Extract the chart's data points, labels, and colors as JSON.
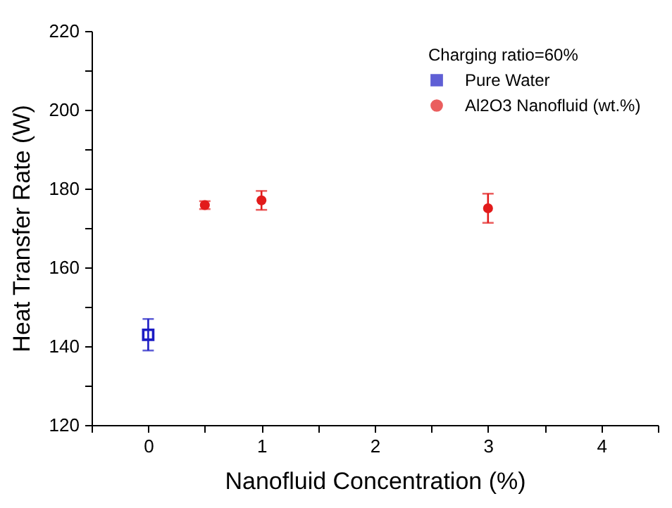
{
  "chart_data": {
    "type": "scatter",
    "xlabel": "Nanofluid Concentration (%)",
    "ylabel": "Heat Transfer Rate (W)",
    "legend_title": "Charging ratio=60%",
    "xlim": [
      -0.5,
      4.5
    ],
    "xticks": [
      {
        "value": -0.5,
        "label": null
      },
      0,
      {
        "value": 0.5,
        "label": null
      },
      1,
      {
        "value": 1.5,
        "label": null
      },
      2,
      {
        "value": 2.5,
        "label": null
      },
      3,
      {
        "value": 3.5,
        "label": null
      },
      4,
      {
        "value": 4.5,
        "label": null
      }
    ],
    "ylim": [
      120,
      220
    ],
    "yticks": [
      120,
      {
        "value": 130,
        "label": null
      },
      140,
      {
        "value": 150,
        "label": null
      },
      160,
      {
        "value": 170,
        "label": null
      },
      180,
      {
        "value": 190,
        "label": null
      },
      200,
      {
        "value": 210,
        "label": null
      },
      220
    ],
    "series": [
      {
        "name": "Pure Water",
        "color": "#1c1cc4",
        "marker": "square",
        "x": [
          0
        ],
        "values": [
          142.9
        ],
        "errors": [
          4
        ]
      },
      {
        "name": "Al2O3 Nanofluid (wt.%)",
        "color": "#e21b1b",
        "marker": "circle",
        "x": [
          0.5,
          1,
          3
        ],
        "values": [
          175.8,
          177,
          175
        ],
        "errors": [
          1,
          2.4,
          3.7
        ]
      }
    ],
    "legend": "top right",
    "grid": false
  }
}
